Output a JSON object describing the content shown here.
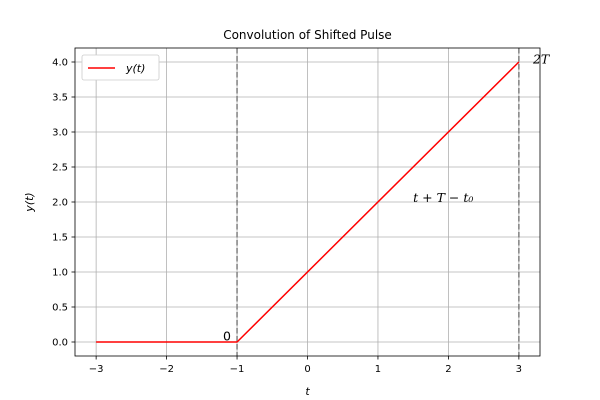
{
  "chart_data": {
    "type": "line",
    "title": "Convolution of Shifted Pulse",
    "xlabel": "t",
    "ylabel": "y(t)",
    "xlim": [
      -3.3,
      3.3
    ],
    "ylim": [
      -0.2,
      4.2
    ],
    "xticks": [
      -3,
      -2,
      -1,
      0,
      1,
      2,
      3
    ],
    "xtick_labels": [
      "−3",
      "−2",
      "−1",
      "0",
      "1",
      "2",
      "3"
    ],
    "yticks": [
      0,
      0.5,
      1,
      1.5,
      2,
      2.5,
      3,
      3.5,
      4
    ],
    "ytick_labels": [
      "0.0",
      "0.5",
      "1.0",
      "1.5",
      "2.0",
      "2.5",
      "3.0",
      "3.5",
      "4.0"
    ],
    "grid": true,
    "legend_position": "top-left",
    "series": [
      {
        "name": "y(t)",
        "color": "#ff0000",
        "x": [
          -3,
          -1,
          3
        ],
        "y": [
          0,
          0,
          4
        ]
      }
    ],
    "vlines": [
      {
        "x": -1,
        "color": "#808080",
        "style": "dashed"
      },
      {
        "x": 3,
        "color": "#808080",
        "style": "dashed"
      }
    ],
    "annotations": [
      {
        "text": "0",
        "x": -1.2,
        "y": 0.02
      },
      {
        "text": "t + T − t₀",
        "x": 1.5,
        "y": 2.0
      },
      {
        "text": "2T",
        "x": 3.2,
        "y": 3.98
      }
    ]
  }
}
